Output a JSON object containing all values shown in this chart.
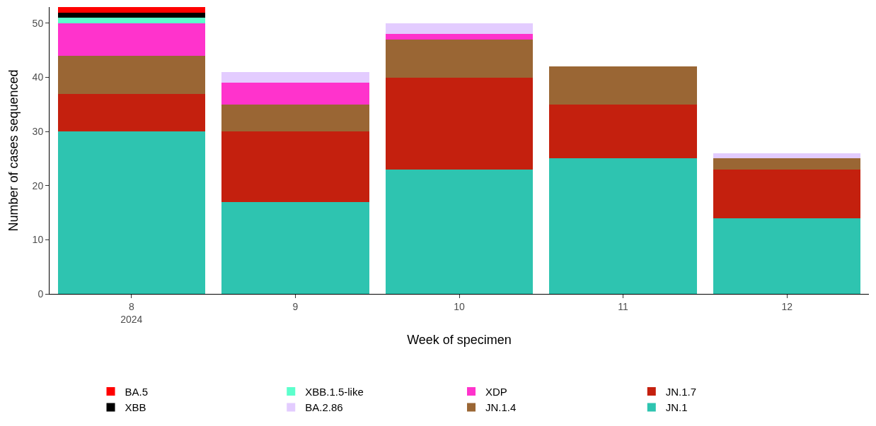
{
  "chart_data": {
    "type": "bar",
    "stacked": true,
    "xlabel": "Week of specimen",
    "ylabel": "Number of cases sequenced",
    "categories": [
      "8\n2024",
      "9",
      "10",
      "11",
      "12"
    ],
    "series": [
      {
        "name": "JN.1",
        "color": "#2ec4b0",
        "values": [
          30,
          17,
          23,
          25,
          14
        ]
      },
      {
        "name": "JN.1.7",
        "color": "#c4200e",
        "values": [
          7,
          13,
          17,
          10,
          9
        ]
      },
      {
        "name": "JN.1.4",
        "color": "#9a6634",
        "values": [
          7,
          5,
          7,
          7,
          2
        ]
      },
      {
        "name": "XDP",
        "color": "#ff33cc",
        "values": [
          6,
          4,
          1,
          0,
          0
        ]
      },
      {
        "name": "BA.2.86",
        "color": "#e3ccff",
        "values": [
          0,
          2,
          2,
          0,
          1
        ]
      },
      {
        "name": "XBB.1.5-like",
        "color": "#5cffcc",
        "values": [
          1,
          0,
          0,
          0,
          0
        ]
      },
      {
        "name": "XBB",
        "color": "#000000",
        "values": [
          1,
          0,
          0,
          0,
          0
        ]
      },
      {
        "name": "BA.5",
        "color": "#ff0000",
        "values": [
          1,
          0,
          0,
          0,
          0
        ]
      }
    ],
    "ylim": [
      0,
      53
    ],
    "yticks": [
      0,
      10,
      20,
      30,
      40,
      50
    ],
    "legend": "bottom"
  }
}
